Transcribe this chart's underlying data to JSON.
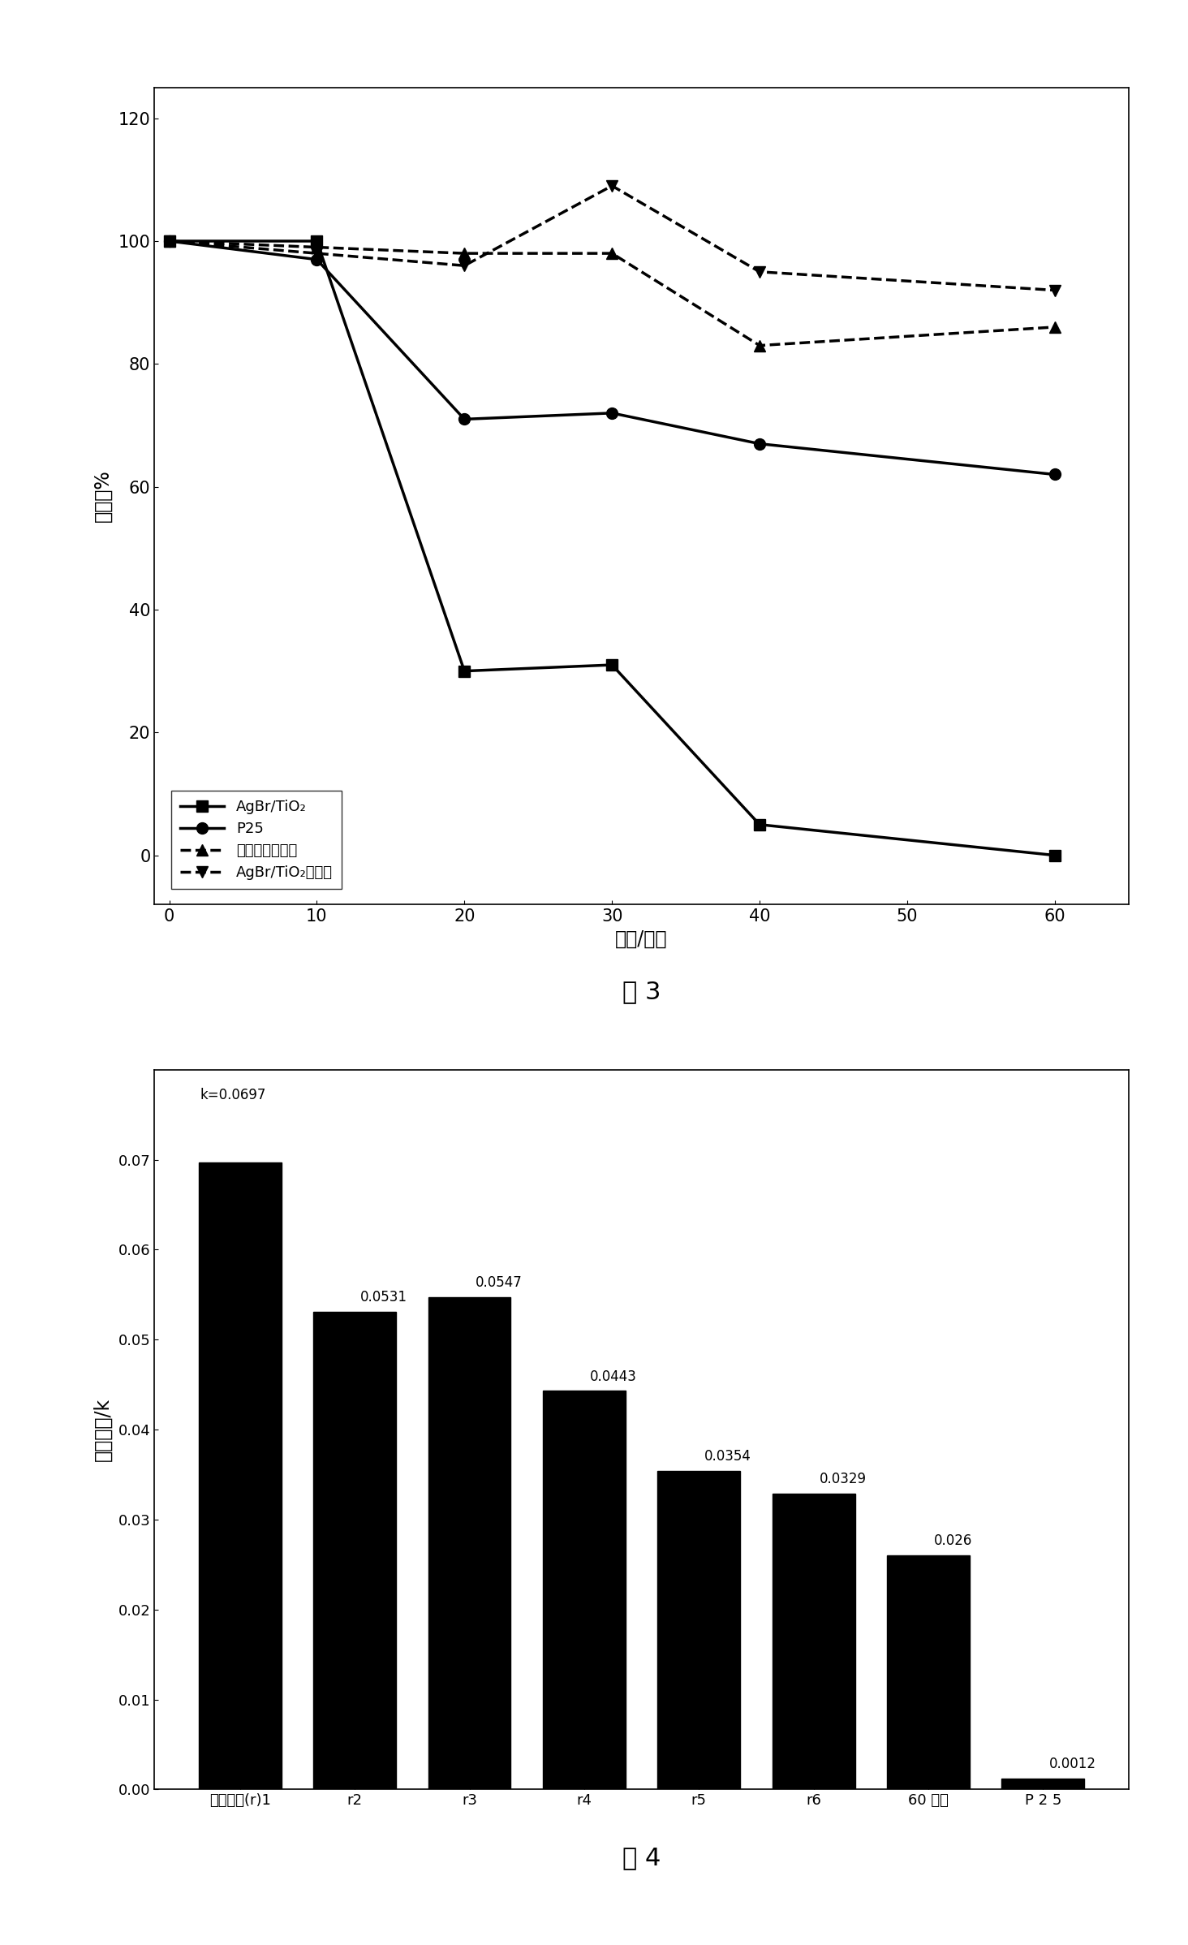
{
  "fig3": {
    "title": "图 3",
    "xlabel": "时间/分钟",
    "ylabel": "存活率%",
    "xlim": [
      -1,
      65
    ],
    "ylim": [
      -8,
      125
    ],
    "xticks": [
      0,
      10,
      20,
      30,
      40,
      50,
      60
    ],
    "yticks": [
      0,
      20,
      40,
      60,
      80,
      100,
      120
    ],
    "series": [
      {
        "label": "AgBr/TiO₂",
        "x": [
          0,
          10,
          20,
          30,
          40,
          60
        ],
        "y": [
          100,
          100,
          30,
          31,
          5,
          0
        ],
        "marker": "s",
        "linestyle": "-",
        "color": "#000000",
        "linewidth": 2.5
      },
      {
        "label": "P25",
        "x": [
          0,
          10,
          20,
          30,
          40,
          60
        ],
        "y": [
          100,
          97,
          71,
          72,
          67,
          62
        ],
        "marker": "o",
        "linestyle": "-",
        "color": "#000000",
        "linewidth": 2.5
      },
      {
        "label": "可见光无催化剂",
        "x": [
          0,
          10,
          20,
          30,
          40,
          60
        ],
        "y": [
          100,
          99,
          98,
          98,
          83,
          86
        ],
        "marker": "^",
        "linestyle": "--",
        "color": "#000000",
        "linewidth": 2.5
      },
      {
        "label": "AgBr/TiO₂无光照",
        "x": [
          0,
          10,
          20,
          30,
          40,
          60
        ],
        "y": [
          100,
          98,
          96,
          109,
          95,
          92
        ],
        "marker": "v",
        "linestyle": "--",
        "color": "#000000",
        "linewidth": 2.5
      }
    ]
  },
  "fig4": {
    "title": "图 4",
    "ylabel": "速率常数/k",
    "categories": [
      "反复实验(r)1",
      "r2",
      "r3",
      "r4",
      "r5",
      "r6",
      "60 小时",
      "P 2 5"
    ],
    "values": [
      0.0697,
      0.0531,
      0.0547,
      0.0443,
      0.0354,
      0.0329,
      0.026,
      0.0012
    ],
    "bar_color": "#000000",
    "ylim": [
      0,
      0.08
    ],
    "yticks": [
      0.0,
      0.01,
      0.02,
      0.03,
      0.04,
      0.05,
      0.06,
      0.07
    ],
    "annotations": [
      "k=0.0697",
      "0.0531",
      "0.0547",
      "0.0443",
      "0.0354",
      "0.0329",
      "0.026",
      "0.0012"
    ]
  },
  "background_color": "#ffffff",
  "figsize": [
    14.64,
    23.96
  ]
}
